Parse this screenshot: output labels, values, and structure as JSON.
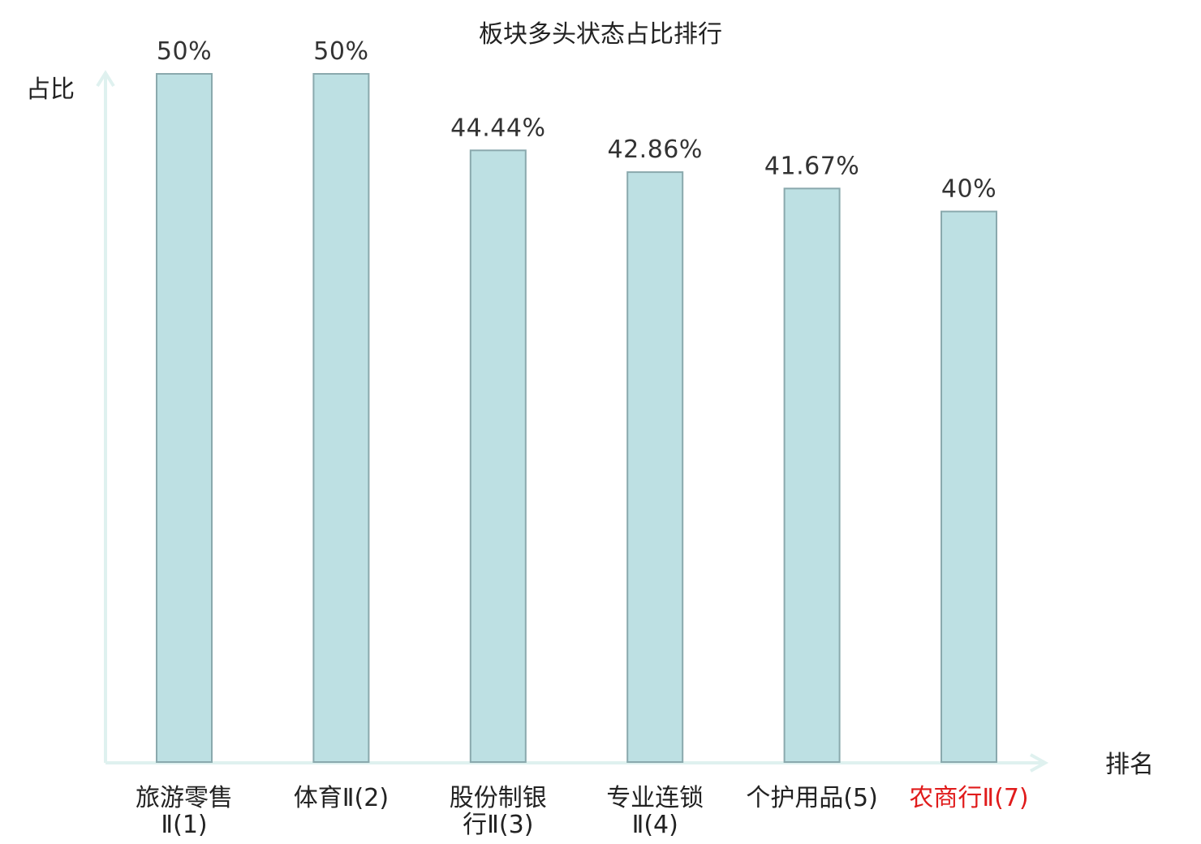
{
  "chart_data": {
    "type": "bar",
    "title": "板块多头状态占比排行",
    "xlabel": "排名",
    "ylabel": "占比",
    "categories": [
      {
        "lines": [
          "旅游零售",
          "Ⅱ(1)"
        ],
        "highlight": false
      },
      {
        "lines": [
          "体育Ⅱ(2)"
        ],
        "highlight": false
      },
      {
        "lines": [
          "股份制银",
          "行Ⅱ(3)"
        ],
        "highlight": false
      },
      {
        "lines": [
          "专业连锁",
          "Ⅱ(4)"
        ],
        "highlight": false
      },
      {
        "lines": [
          "个护用品(5)"
        ],
        "highlight": false
      },
      {
        "lines": [
          "农商行Ⅱ(7)"
        ],
        "highlight": true
      }
    ],
    "values": [
      50,
      50,
      44.44,
      42.86,
      41.67,
      40
    ],
    "value_labels": [
      "50%",
      "50%",
      "44.44%",
      "42.86%",
      "41.67%",
      "40%"
    ],
    "ylim": [
      0,
      50
    ],
    "grid": false,
    "legend": "none"
  },
  "colors": {
    "bar_fill": "#bde0e3",
    "bar_stroke": "#8aa9ad",
    "axis": "#dff1ef",
    "text": "#222222",
    "value_text": "#333333",
    "highlight": "#e01b1b"
  }
}
